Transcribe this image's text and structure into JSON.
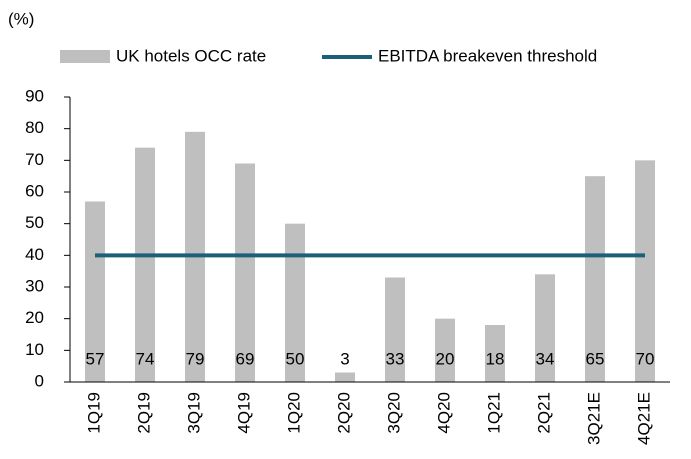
{
  "chart_data": {
    "type": "bar",
    "y_label": "(%)",
    "categories": [
      "1Q19",
      "2Q19",
      "3Q19",
      "4Q19",
      "1Q20",
      "2Q20",
      "3Q20",
      "4Q20",
      "1Q21",
      "2Q21",
      "3Q21E",
      "4Q21E"
    ],
    "series": [
      {
        "name": "UK hotels OCC rate",
        "type": "bar",
        "color": "#bfbfbf",
        "values": [
          57,
          74,
          79,
          69,
          50,
          3,
          33,
          20,
          18,
          34,
          65,
          70
        ]
      },
      {
        "name": "EBITDA breakeven threshold",
        "type": "line",
        "color": "#1b5f78",
        "values": [
          40,
          40,
          40,
          40,
          40,
          40,
          40,
          40,
          40,
          40,
          40,
          40
        ]
      }
    ],
    "ylim": [
      0,
      90
    ],
    "yticks": [
      0,
      10,
      20,
      30,
      40,
      50,
      60,
      70,
      80,
      90
    ],
    "legend": "top"
  }
}
